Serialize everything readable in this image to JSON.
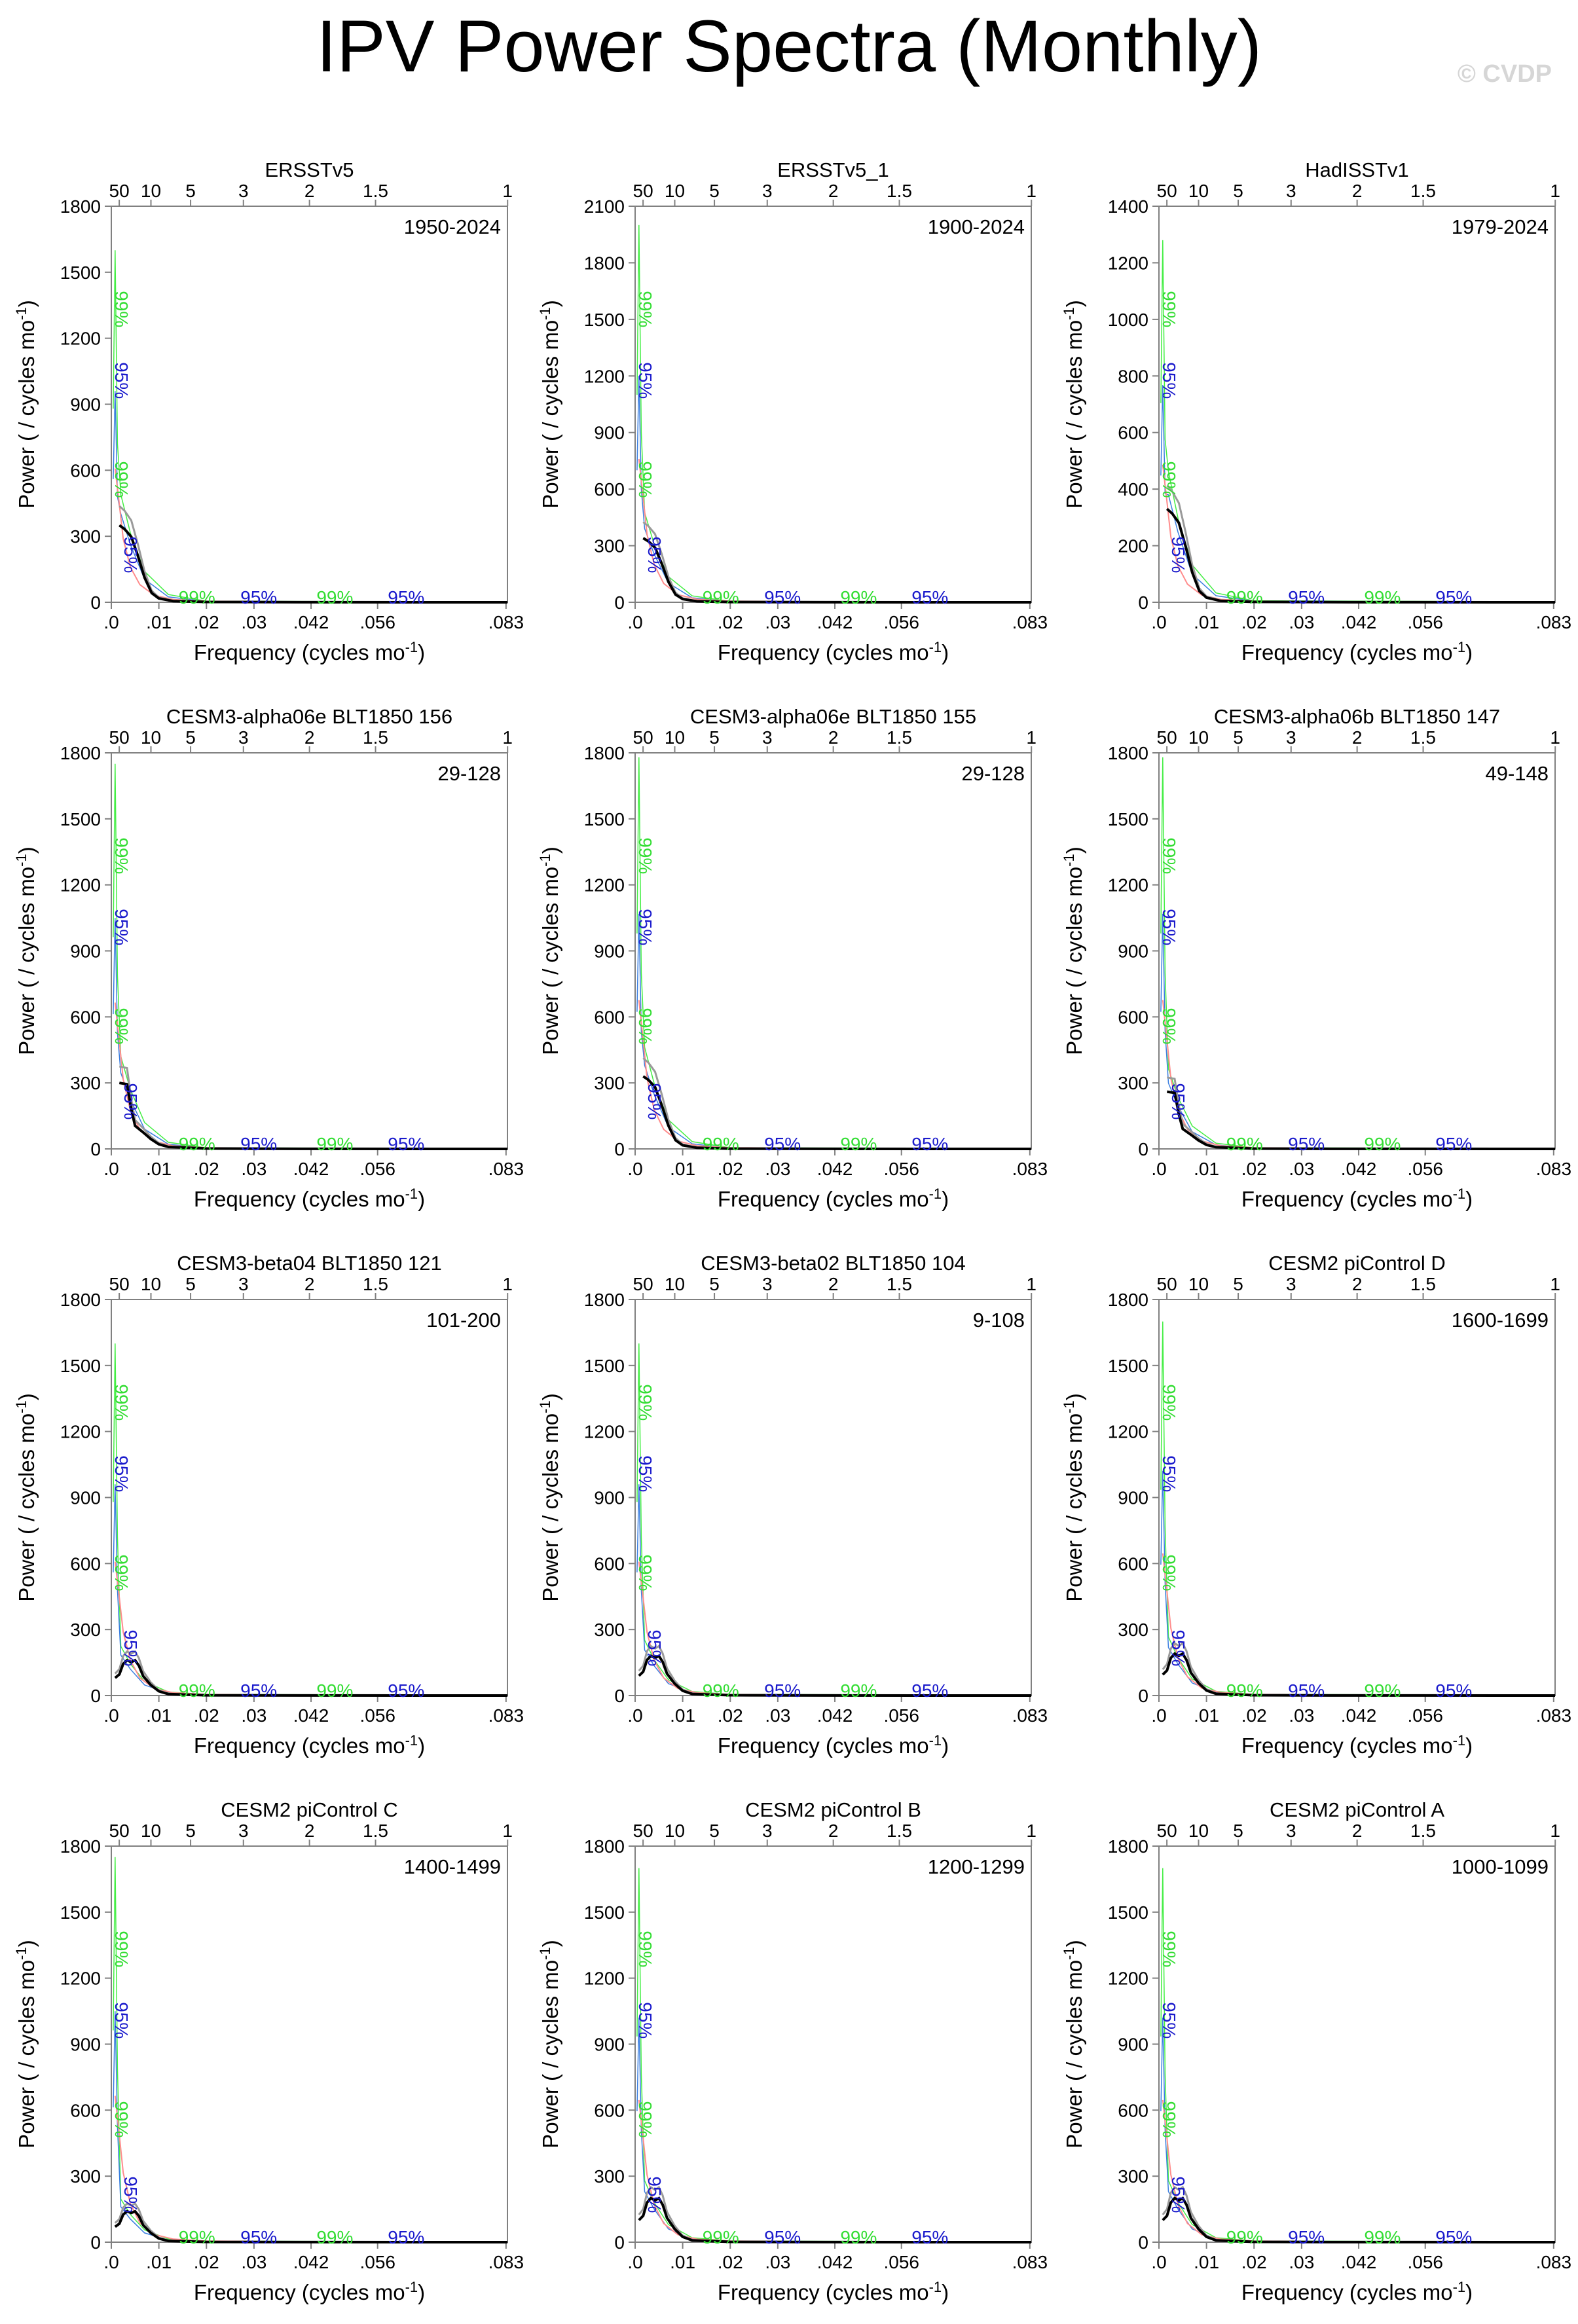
{
  "title": "IPV Power Spectra (Monthly)",
  "watermark": "© CVDP",
  "common": {
    "xlabel": "Frequency (cycles mo",
    "xlabel_sup": "-1",
    "xlabel_end": ")",
    "ylabel": "Power ( / cycles mo",
    "ylabel_sup": "-1",
    "ylabel_end": ")",
    "xticks_bottom": [
      ".0",
      ".01",
      ".02",
      ".03",
      ".042",
      ".056",
      ".083"
    ],
    "xticks_bottom_values": [
      0,
      0.01,
      0.02,
      0.03,
      0.042,
      0.056,
      0.083
    ],
    "xticks_top": [
      "50",
      "10",
      "5",
      "3",
      "2",
      "1.5",
      "1"
    ],
    "xticks_top_values": [
      0.00167,
      0.00833,
      0.01667,
      0.02778,
      0.04167,
      0.05556,
      0.08333
    ],
    "xlim": [
      0,
      0.0833
    ],
    "label_99": "99%",
    "label_95": "95%"
  },
  "colors": {
    "spectrum": "#000000",
    "red_noise": "#ff8c8c",
    "conf_95": "#3a7ee0",
    "conf_99": "#44ee44",
    "gray": "#9a9a9a",
    "label_95": "#1a1acc",
    "label_99": "#33dd33"
  },
  "chart_data": [
    {
      "type": "line",
      "title": "ERSSTv5",
      "years": "1950-2024",
      "ylim": [
        0,
        1800
      ],
      "yticks": [
        0,
        300,
        600,
        900,
        1200,
        1500,
        1800
      ],
      "peak": 350,
      "profile": "A",
      "spike": 1600,
      "xlabel": "Frequency (cycles mo-1)",
      "ylabel": "Power ( / cycles mo-1)"
    },
    {
      "type": "line",
      "title": "ERSSTv5_1",
      "years": "1900-2024",
      "ylim": [
        0,
        2100
      ],
      "yticks": [
        0,
        300,
        600,
        900,
        1200,
        1500,
        1800,
        2100
      ],
      "peak": 340,
      "profile": "A",
      "spike": 2000,
      "xlabel": "Frequency (cycles mo-1)",
      "ylabel": "Power ( / cycles mo-1)"
    },
    {
      "type": "line",
      "title": "HadISSTv1",
      "years": "1979-2024",
      "ylim": [
        0,
        1400
      ],
      "yticks": [
        0,
        200,
        400,
        600,
        800,
        1000,
        1200,
        1400
      ],
      "peak": 330,
      "profile": "A",
      "spike": 1280,
      "xlabel": "Frequency (cycles mo-1)",
      "ylabel": "Power ( / cycles mo-1)"
    },
    {
      "type": "line",
      "title": "CESM3-alpha06e BLT1850 156",
      "years": "29-128",
      "ylim": [
        0,
        1800
      ],
      "yticks": [
        0,
        300,
        600,
        900,
        1200,
        1500,
        1800
      ],
      "peak": 300,
      "profile": "B",
      "spike": 1750,
      "xlabel": "Frequency (cycles mo-1)",
      "ylabel": "Power ( / cycles mo-1)"
    },
    {
      "type": "line",
      "title": "CESM3-alpha06e BLT1850 155",
      "years": "29-128",
      "ylim": [
        0,
        1800
      ],
      "yticks": [
        0,
        300,
        600,
        900,
        1200,
        1500,
        1800
      ],
      "peak": 330,
      "profile": "A",
      "spike": 1780,
      "xlabel": "Frequency (cycles mo-1)",
      "ylabel": "Power ( / cycles mo-1)"
    },
    {
      "type": "line",
      "title": "CESM3-alpha06b BLT1850 147",
      "years": "49-148",
      "ylim": [
        0,
        1800
      ],
      "yticks": [
        0,
        300,
        600,
        900,
        1200,
        1500,
        1800
      ],
      "peak": 260,
      "profile": "B",
      "spike": 1780,
      "xlabel": "Frequency (cycles mo-1)",
      "ylabel": "Power ( / cycles mo-1)"
    },
    {
      "type": "line",
      "title": "CESM3-beta04 BLT1850 121",
      "years": "101-200",
      "ylim": [
        0,
        1800
      ],
      "yticks": [
        0,
        300,
        600,
        900,
        1200,
        1500,
        1800
      ],
      "peak": 160,
      "profile": "C",
      "spike": 1600,
      "xlabel": "Frequency (cycles mo-1)",
      "ylabel": "Power ( / cycles mo-1)"
    },
    {
      "type": "line",
      "title": "CESM3-beta02 BLT1850 104",
      "years": "9-108",
      "ylim": [
        0,
        1800
      ],
      "yticks": [
        0,
        300,
        600,
        900,
        1200,
        1500,
        1800
      ],
      "peak": 180,
      "profile": "C",
      "spike": 1600,
      "xlabel": "Frequency (cycles mo-1)",
      "ylabel": "Power ( / cycles mo-1)"
    },
    {
      "type": "line",
      "title": "CESM2 piControl D",
      "years": "1600-1699",
      "ylim": [
        0,
        1800
      ],
      "yticks": [
        0,
        300,
        600,
        900,
        1200,
        1500,
        1800
      ],
      "peak": 190,
      "profile": "C",
      "spike": 1700,
      "xlabel": "Frequency (cycles mo-1)",
      "ylabel": "Power ( / cycles mo-1)"
    },
    {
      "type": "line",
      "title": "CESM2 piControl C",
      "years": "1400-1499",
      "ylim": [
        0,
        1800
      ],
      "yticks": [
        0,
        300,
        600,
        900,
        1200,
        1500,
        1800
      ],
      "peak": 140,
      "profile": "C",
      "spike": 1750,
      "xlabel": "Frequency (cycles mo-1)",
      "ylabel": "Power ( / cycles mo-1)"
    },
    {
      "type": "line",
      "title": "CESM2 piControl B",
      "years": "1200-1299",
      "ylim": [
        0,
        1800
      ],
      "yticks": [
        0,
        300,
        600,
        900,
        1200,
        1500,
        1800
      ],
      "peak": 200,
      "profile": "C",
      "spike": 1700,
      "xlabel": "Frequency (cycles mo-1)",
      "ylabel": "Power ( / cycles mo-1)"
    },
    {
      "type": "line",
      "title": "CESM2 piControl A",
      "years": "1000-1099",
      "ylim": [
        0,
        1800
      ],
      "yticks": [
        0,
        300,
        600,
        900,
        1200,
        1500,
        1800
      ],
      "peak": 200,
      "profile": "C",
      "spike": 1700,
      "xlabel": "Frequency (cycles mo-1)",
      "ylabel": "Power ( / cycles mo-1)"
    }
  ]
}
